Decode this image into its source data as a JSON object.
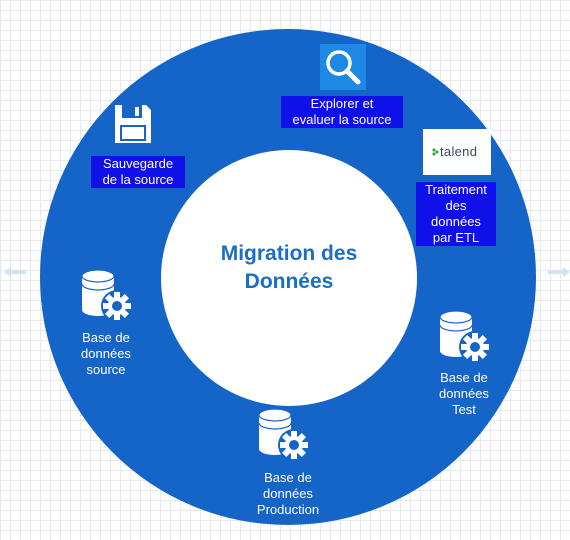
{
  "diagram": {
    "title_lines": [
      "Migration des",
      "Données"
    ],
    "steps": [
      {
        "id": "explore",
        "icon": "magnifier-icon",
        "label_lines": [
          "Explorer et",
          "evaluer la source"
        ]
      },
      {
        "id": "etl",
        "icon": "talend-logo",
        "logo_text": "talend",
        "label_lines": [
          "Traitement",
          "des",
          "données",
          "par ETL"
        ]
      },
      {
        "id": "test",
        "icon": "database-gear-icon",
        "label_lines": [
          "Base de",
          "données",
          "Test"
        ]
      },
      {
        "id": "production",
        "icon": "database-gear-icon",
        "label_lines": [
          "Base de",
          "données",
          "Production"
        ]
      },
      {
        "id": "source-db",
        "icon": "database-gear-icon",
        "label_lines": [
          "Base de",
          "données",
          "source"
        ]
      },
      {
        "id": "backup",
        "icon": "floppy-disk-icon",
        "label_lines": [
          "Sauvegarde",
          "de la source"
        ]
      }
    ]
  },
  "colors": {
    "ring": "#1565c8",
    "title": "#1b6ec2",
    "label_box": "#1010e8",
    "icon_tile": "#1e88e5"
  }
}
